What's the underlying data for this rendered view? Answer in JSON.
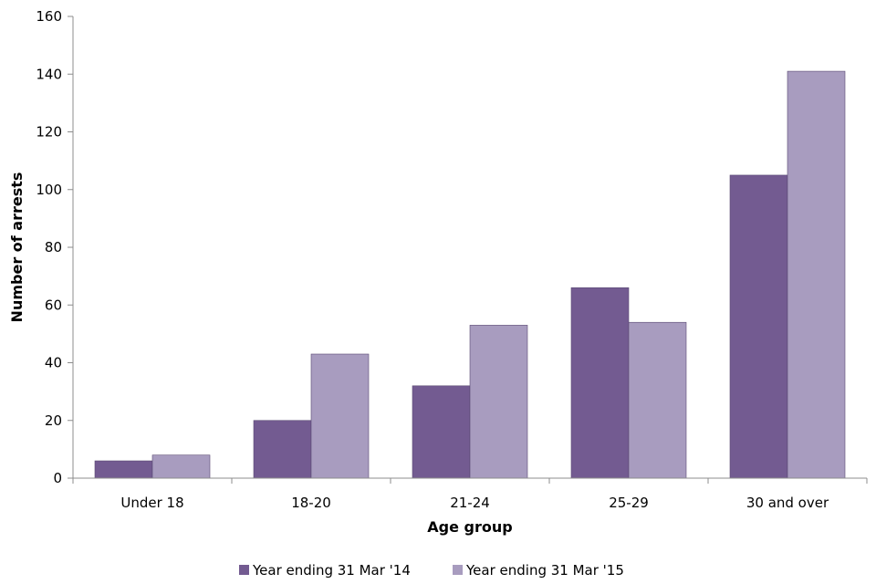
{
  "chart_data": {
    "type": "bar",
    "title": "",
    "xlabel": "Age group",
    "ylabel": "Number of arrests",
    "categories": [
      "Under 18",
      "18-20",
      "21-24",
      "25-29",
      "30 and over"
    ],
    "series": [
      {
        "name": "Year ending 31 Mar '14",
        "color": "#735b91",
        "values": [
          6,
          20,
          32,
          66,
          105
        ]
      },
      {
        "name": "Year ending 31 Mar '15",
        "color": "#a89cbf",
        "values": [
          8,
          43,
          53,
          54,
          141
        ]
      }
    ],
    "ylim": [
      0,
      160
    ],
    "yticks": [
      0,
      20,
      40,
      60,
      80,
      100,
      120,
      140,
      160
    ],
    "grid": false,
    "legend_position": "bottom"
  }
}
